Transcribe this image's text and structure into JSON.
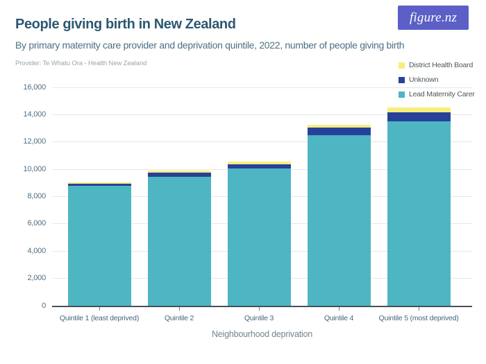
{
  "header": {
    "title": "People giving birth in New Zealand",
    "subtitle": "By primary maternity care provider and deprivation quintile, 2022, number of people giving birth",
    "provider": "Provider: Te Whatu Ora - Health New Zealand",
    "logo_text": "figure.nz"
  },
  "colors": {
    "brand_purple": "#5B5FC6",
    "teal": "#4DB6C2",
    "navy": "#27419B",
    "yellow": "#F9EE7D"
  },
  "legend": {
    "items": [
      {
        "label": "District Health Board",
        "color": "#F9EE7D"
      },
      {
        "label": "Unknown",
        "color": "#27419B"
      },
      {
        "label": "Lead Maternity Carer",
        "color": "#4DB6C2"
      }
    ]
  },
  "chart_data": {
    "type": "bar",
    "stacked": true,
    "title": "People giving birth in New Zealand",
    "subtitle": "By primary maternity care provider and deprivation quintile, 2022, number of people giving birth",
    "xlabel": "Neighbourhood deprivation",
    "ylabel": "",
    "categories": [
      "Quintile 1 (least deprived)",
      "Quintile 2",
      "Quintile 3",
      "Quintile 4",
      "Quintile 5 (most deprived)"
    ],
    "series": [
      {
        "name": "Lead Maternity Carer",
        "color": "#4DB6C2",
        "values": [
          8800,
          9450,
          10050,
          12500,
          13500
        ]
      },
      {
        "name": "Unknown",
        "color": "#27419B",
        "values": [
          150,
          280,
          300,
          550,
          650
        ]
      },
      {
        "name": "District Health Board",
        "color": "#F9EE7D",
        "values": [
          70,
          200,
          200,
          200,
          400
        ]
      }
    ],
    "totals": [
      9020,
      9930,
      10550,
      13250,
      14550
    ],
    "ylim": [
      0,
      16000
    ],
    "ytick_values": [
      0,
      2000,
      4000,
      6000,
      8000,
      10000,
      12000,
      14000,
      16000
    ],
    "ytick_labels": [
      "0",
      "2,000",
      "4,000",
      "6,000",
      "8,000",
      "10,000",
      "12,000",
      "14,000",
      "16,000"
    ],
    "grid": true,
    "legend_position": "top-right"
  }
}
